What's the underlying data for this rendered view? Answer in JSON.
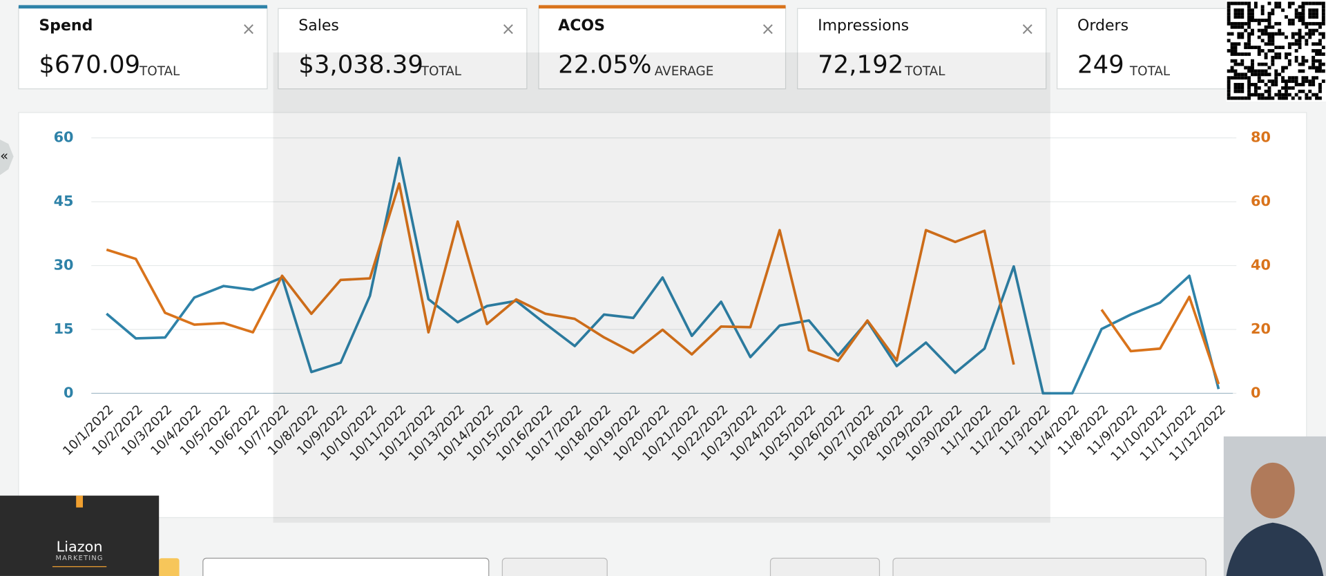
{
  "metrics": [
    {
      "value": "$670.09",
      "unit": "TOTAL"
    },
    {
      "label": "Sales",
      "value": "$3,038.39",
      "unit": "TOTAL"
    },
    {
      "value": "22.05%",
      "unit": "AVERAGE"
    },
    {
      "label": "Impressions",
      "value": "72,192",
      "unit": "TOTAL"
    },
    {
      "label": "Orders",
      "value": "249",
      "unit": "TOTAL"
    }
  ],
  "chart_data": {
    "type": "line",
    "categories": [
      "10/1/2022",
      "10/2/2022",
      "10/3/2022",
      "10/4/2022",
      "10/5/2022",
      "10/6/2022",
      "10/7/2022",
      "10/8/2022",
      "10/9/2022",
      "10/10/2022",
      "10/11/2022",
      "10/12/2022",
      "10/13/2022",
      "10/14/2022",
      "10/15/2022",
      "10/16/2022",
      "10/17/2022",
      "10/18/2022",
      "10/19/2022",
      "10/20/2022",
      "10/21/2022",
      "10/22/2022",
      "10/23/2022",
      "10/24/2022",
      "10/25/2022",
      "10/26/2022",
      "10/27/2022",
      "10/28/2022",
      "10/29/2022",
      "10/30/2022",
      "11/1/2022",
      "11/2/2022",
      "11/3/2022",
      "11/4/2022",
      "11/8/2022",
      "11/9/2022",
      "11/10/2022",
      "11/11/2022",
      "11/12/2022"
    ],
    "series": [
      {
        "name": "Spend",
        "color": "#2e82a8",
        "values": [
          18.7,
          12.9,
          13.1,
          22.5,
          25.2,
          24.3,
          27.2,
          5.0,
          7.2,
          22.9,
          55.3,
          22.1,
          16.7,
          20.5,
          21.7,
          16.3,
          11.1,
          18.5,
          17.7,
          27.2,
          13.5,
          21.5,
          8.5,
          15.9,
          17.1,
          8.9,
          16.9,
          6.4,
          11.9,
          4.8,
          10.5,
          29.8,
          0,
          0,
          15.1,
          18.5,
          21.3,
          27.6,
          1.0
        ]
      },
      {
        "name": "ACOS",
        "color": "#d9731b",
        "axis": "y2",
        "values": [
          45.0,
          42.1,
          25.2,
          21.5,
          22.0,
          19.1,
          36.8,
          24.9,
          35.5,
          36.0,
          65.7,
          19.1,
          53.8,
          21.7,
          29.4,
          24.9,
          23.3,
          17.5,
          12.7,
          19.9,
          12.2,
          20.9,
          20.7,
          51.1,
          13.5,
          10.1,
          22.8,
          10.3,
          51.1,
          47.4,
          50.9,
          9.0,
          null,
          null,
          26.2,
          13.2,
          14.0,
          30.2,
          2.9
        ]
      }
    ],
    "ylim": [
      0,
      60
    ],
    "yticks": [
      0,
      15,
      30,
      45,
      60
    ],
    "y2lim": [
      0,
      80
    ],
    "y2ticks": [
      0,
      20,
      40,
      60,
      80
    ],
    "grid": true
  },
  "logo": {
    "name": "Liazon",
    "tagline": "MARKETING"
  }
}
